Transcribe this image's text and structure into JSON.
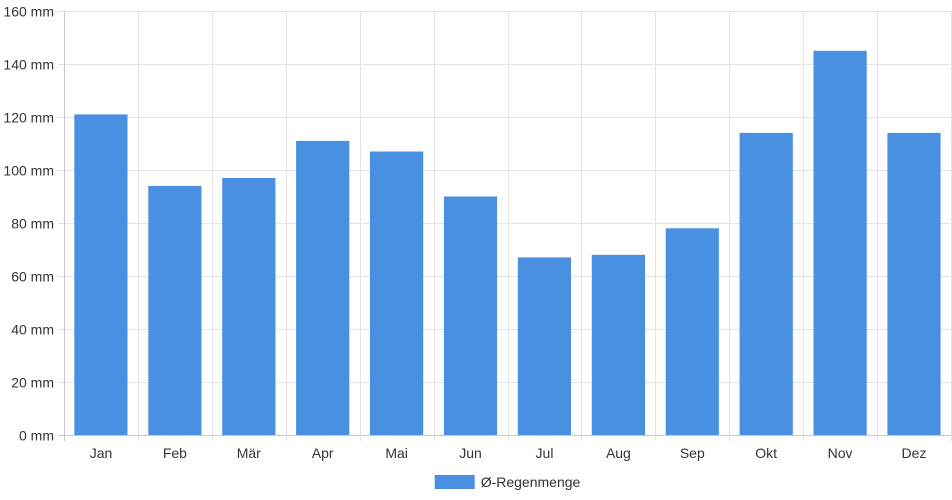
{
  "chart_data": {
    "type": "bar",
    "categories": [
      "Jan",
      "Feb",
      "Mär",
      "Apr",
      "Mai",
      "Jun",
      "Jul",
      "Aug",
      "Sep",
      "Okt",
      "Nov",
      "Dez"
    ],
    "series": [
      {
        "name": "Ø-Regenmenge",
        "values": [
          121,
          94,
          97,
          111,
          107,
          90,
          67,
          68,
          78,
          114,
          145,
          114
        ],
        "color": "#4a90e2"
      }
    ],
    "ylim": [
      0,
      160
    ],
    "yticks": [
      0,
      20,
      40,
      60,
      80,
      100,
      120,
      140,
      160
    ],
    "ytick_labels": [
      "0 mm",
      "20 mm",
      "40 mm",
      "60 mm",
      "80 mm",
      "100 mm",
      "120 mm",
      "140 mm",
      "160 mm"
    ],
    "grid": true,
    "legend_position": "bottom-center",
    "colors": {
      "bar": "#4a90e2",
      "grid": "#e3e3e3",
      "axis": "#c8c8c8"
    }
  }
}
